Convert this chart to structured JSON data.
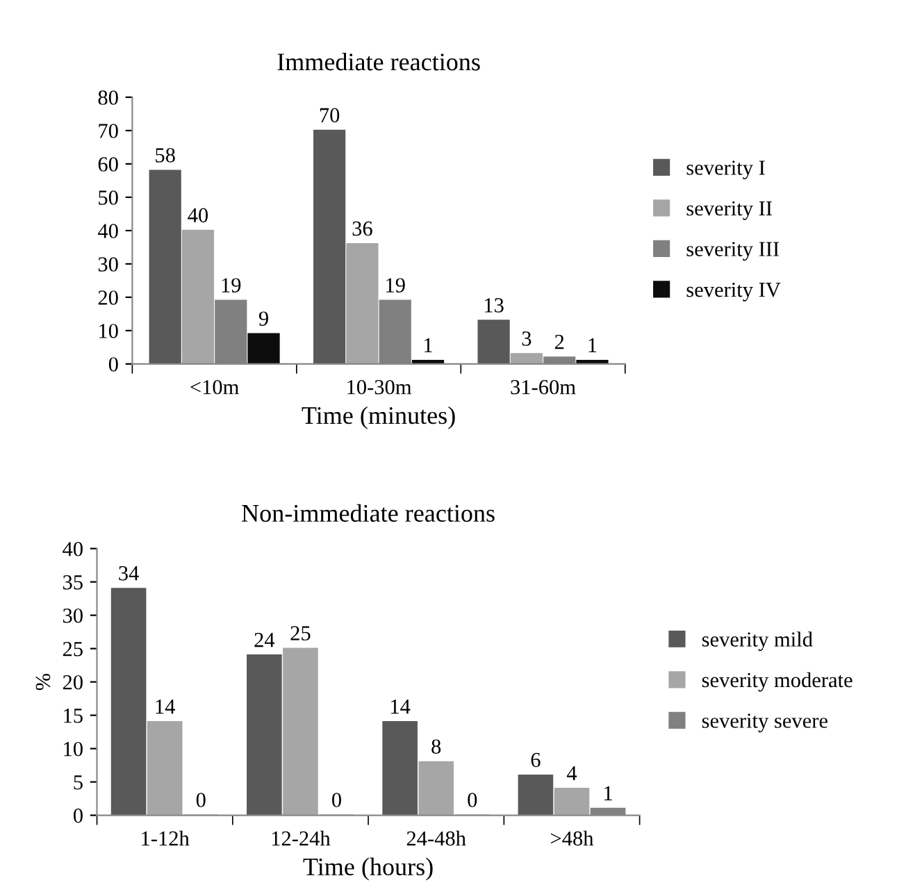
{
  "chart_data": [
    {
      "type": "bar",
      "title": "Immediate reactions",
      "xlabel": "Time (minutes)",
      "categories": [
        "<10m",
        "10-30m",
        "31-60m"
      ],
      "series": [
        {
          "name": "severity I",
          "color": "#595959",
          "values": [
            58,
            70,
            13
          ]
        },
        {
          "name": "severity II",
          "color": "#a6a6a6",
          "values": [
            40,
            36,
            3
          ]
        },
        {
          "name": "severity III",
          "color": "#808080",
          "values": [
            19,
            19,
            2
          ]
        },
        {
          "name": "severity IV",
          "color": "#0d0d0d",
          "values": [
            9,
            1,
            1
          ]
        }
      ],
      "ylim": [
        0,
        80
      ],
      "yticks": [
        0,
        10,
        20,
        30,
        40,
        50,
        60,
        70,
        80
      ],
      "data_labels": true,
      "grid": false,
      "legend": "right"
    },
    {
      "type": "bar",
      "title": "Non-immediate reactions",
      "xlabel": "Time (hours)",
      "ylabel": "%",
      "categories": [
        "1-12h",
        "12-24h",
        "24-48h",
        ">48h"
      ],
      "series": [
        {
          "name": "severity mild",
          "color": "#595959",
          "values": [
            34,
            24,
            14,
            6
          ]
        },
        {
          "name": "severity moderate",
          "color": "#a6a6a6",
          "values": [
            14,
            25,
            8,
            4
          ]
        },
        {
          "name": "severity severe",
          "color": "#808080",
          "values": [
            0,
            0,
            0,
            1
          ]
        }
      ],
      "ylim": [
        0,
        40
      ],
      "yticks": [
        0,
        5,
        10,
        15,
        20,
        25,
        30,
        35,
        40
      ],
      "data_labels": true,
      "grid": false,
      "legend": "right"
    }
  ]
}
